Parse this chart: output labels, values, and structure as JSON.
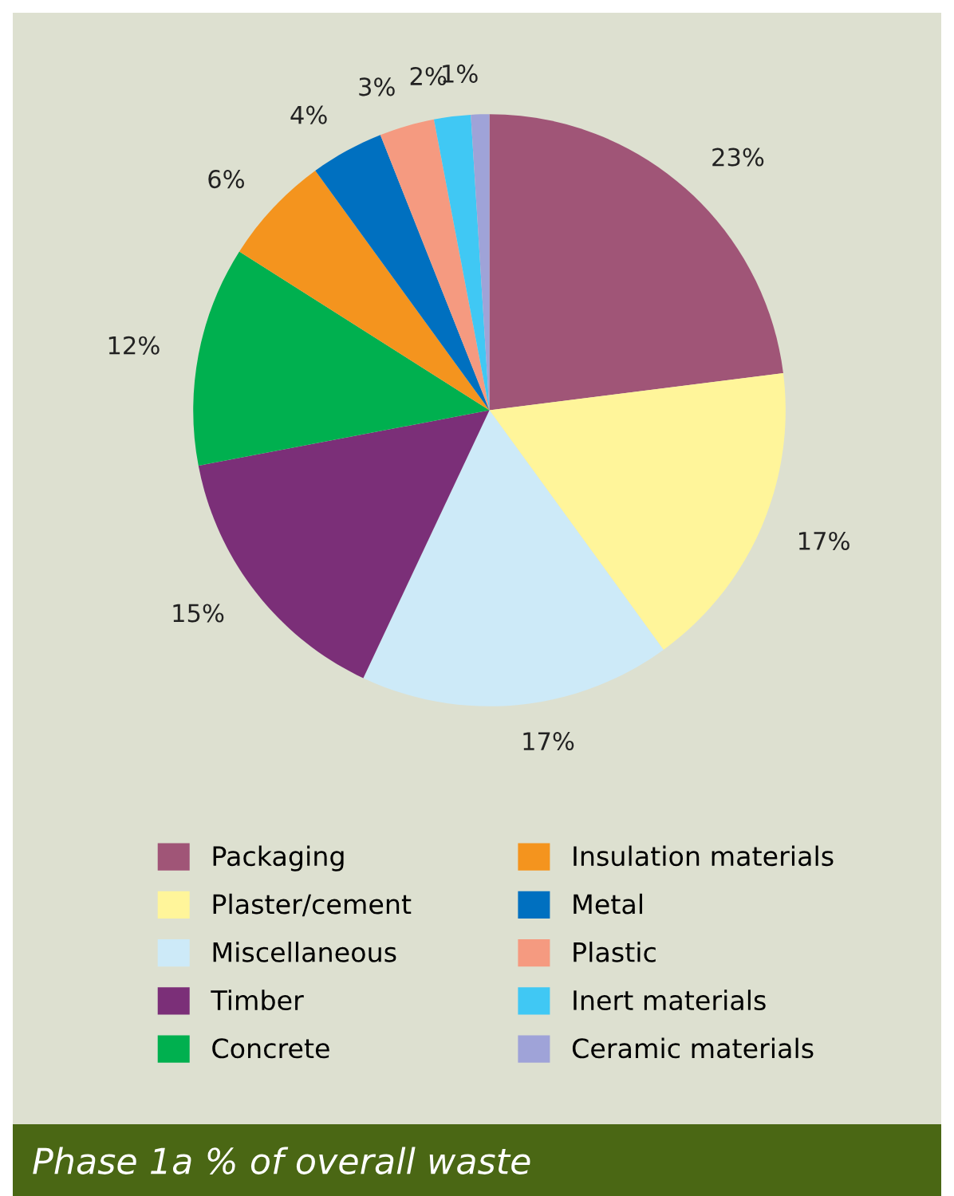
{
  "chart_data": {
    "type": "pie",
    "title": "Phase 1a % of overall waste",
    "categories": [
      "Packaging",
      "Plaster/cement",
      "Miscellaneous",
      "Timber",
      "Concrete",
      "Insulation materials",
      "Metal",
      "Plastic",
      "Inert materials",
      "Ceramic materials"
    ],
    "values": [
      23,
      17,
      17,
      15,
      12,
      6,
      4,
      3,
      2,
      1
    ],
    "value_labels": [
      "23%",
      "17%",
      "17%",
      "15%",
      "12%",
      "6%",
      "4%",
      "3%",
      "2%",
      "1%"
    ],
    "colors": [
      "#a05577",
      "#fff59a",
      "#cdeaf8",
      "#7b2f78",
      "#00b04f",
      "#f4941e",
      "#0070c0",
      "#f59a80",
      "#40c8f4",
      "#9fa3d8"
    ],
    "legend": "bottom"
  }
}
